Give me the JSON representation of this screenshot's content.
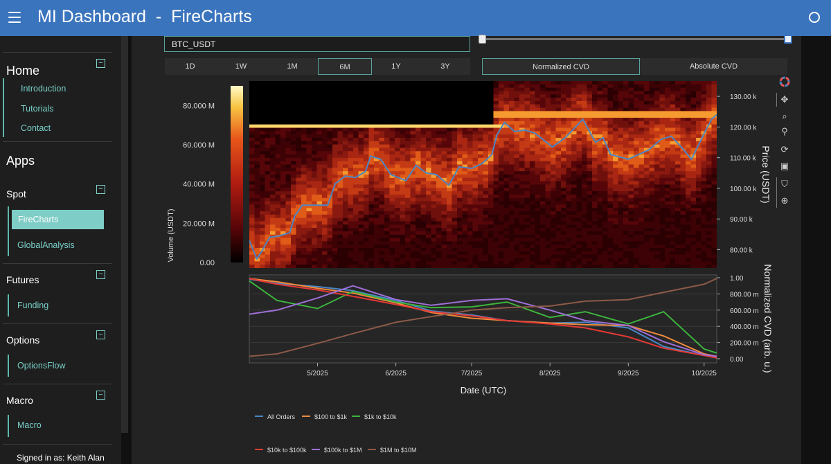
{
  "header": {
    "title": "MI Dashboard  -  FireCharts",
    "menu_icon": "hamburger-menu-icon",
    "status_icon": "status-circle-icon"
  },
  "sidebar": {
    "home": {
      "title": "Home",
      "toggle": "−",
      "links": [
        "Introduction",
        "Tutorials",
        "Contact"
      ]
    },
    "apps_title": "Apps",
    "spot": {
      "title": "Spot",
      "toggle": "−",
      "active": "FireCharts",
      "links": [
        "GlobalAnalysis"
      ]
    },
    "futures": {
      "title": "Futures",
      "toggle": "−",
      "links": [
        "Funding"
      ]
    },
    "options": {
      "title": "Options",
      "toggle": "−",
      "links": [
        "OptionsFlow"
      ]
    },
    "macro": {
      "title": "Macro",
      "toggle": "−",
      "links": [
        "Macro"
      ]
    },
    "signed_in": "Signed in as: Keith Alan"
  },
  "controls": {
    "pair_value": "BTC_USDT",
    "range_slider": {
      "start": 0,
      "end": 1
    },
    "timeframes": [
      "1D",
      "1W",
      "1M",
      "6M",
      "1Y",
      "3Y"
    ],
    "timeframe_selected": "6M",
    "cvd_modes": [
      "Normalized CVD",
      "Absolute CVD"
    ],
    "cvd_selected": "Normalized CVD"
  },
  "modebar": [
    "plotly-logo-icon",
    "pan-icon",
    "zoom-icon",
    "zoom-in-out-icon",
    "reset-icon",
    "save-image-icon",
    "hover-compare-icon",
    "spike-icon"
  ],
  "colors": {
    "accent": "#3a74bd",
    "teal": "#7ecdc6",
    "price": "#4a86c6",
    "series": [
      "#4a86c6",
      "#f08a3a",
      "#3cb53c",
      "#e53935",
      "#9f6fd8",
      "#8d5a48"
    ]
  },
  "chart_data": [
    {
      "type": "heatmap",
      "title": "",
      "xlabel": "Date (UTC)",
      "ylabel": "Price (USDT)",
      "colorbar_label": "Volume (USDT)",
      "colorbar_ticks": [
        "0.00",
        "20.000 M",
        "40.000 M",
        "60.000 M",
        "80.000 M"
      ],
      "colorbar_range": [
        0,
        90000000
      ],
      "x_ticks": [
        "5/2025",
        "6/2025",
        "7/2025",
        "8/2025",
        "9/2025",
        "10/2025"
      ],
      "x_range": [
        "2025-04-04",
        "2025-10-06"
      ],
      "y_ticks": [
        "80.00 k",
        "90.00 k",
        "100.00 k",
        "110.00 k",
        "120.00 k",
        "130.00 k"
      ],
      "ylim": [
        74000,
        135000
      ],
      "price_series": {
        "name": "Price",
        "x": [
          "2025-04-04",
          "2025-04-07",
          "2025-04-09",
          "2025-04-12",
          "2025-04-16",
          "2025-04-20",
          "2025-04-22",
          "2025-04-25",
          "2025-04-30",
          "2025-05-05",
          "2025-05-08",
          "2025-05-12",
          "2025-05-16",
          "2025-05-20",
          "2025-05-22",
          "2025-05-26",
          "2025-05-30",
          "2025-06-05",
          "2025-06-09",
          "2025-06-13",
          "2025-06-17",
          "2025-06-22",
          "2025-06-26",
          "2025-07-01",
          "2025-07-05",
          "2025-07-09",
          "2025-07-11",
          "2025-07-14",
          "2025-07-18",
          "2025-07-22",
          "2025-07-26",
          "2025-08-02",
          "2025-08-07",
          "2025-08-10",
          "2025-08-14",
          "2025-08-19",
          "2025-08-22",
          "2025-08-25",
          "2025-09-01",
          "2025-09-05",
          "2025-09-09",
          "2025-09-14",
          "2025-09-18",
          "2025-09-22",
          "2025-09-26",
          "2025-09-29",
          "2025-10-02",
          "2025-10-04",
          "2025-10-06"
        ],
        "y": [
          83000,
          77000,
          79500,
          84000,
          84500,
          85500,
          91000,
          94500,
          94500,
          94500,
          101500,
          104000,
          103500,
          105500,
          110500,
          109500,
          104500,
          102500,
          107500,
          105000,
          104500,
          101000,
          107000,
          106500,
          108000,
          111000,
          117500,
          121500,
          118500,
          119000,
          118000,
          113500,
          116500,
          119000,
          122500,
          115000,
          116500,
          111000,
          109500,
          111000,
          112500,
          116000,
          117000,
          113500,
          109500,
          114500,
          119500,
          122500,
          124000
        ]
      }
    },
    {
      "type": "line",
      "title": "",
      "xlabel": "Date (UTC)",
      "ylabel": "Normalized CVD (arb. u.)",
      "y_ticks": [
        "0.00",
        "200.00 m",
        "400.00 m",
        "600.00 m",
        "800.00 m",
        "1.00"
      ],
      "ylim": [
        0,
        1
      ],
      "x": [
        "2025-04-04",
        "2025-04-15",
        "2025-05-01",
        "2025-05-15",
        "2025-06-01",
        "2025-06-15",
        "2025-07-01",
        "2025-07-15",
        "2025-08-01",
        "2025-08-15",
        "2025-09-01",
        "2025-09-15",
        "2025-10-01",
        "2025-10-06"
      ],
      "series": [
        {
          "name": "All Orders",
          "values": [
            0.98,
            0.93,
            0.89,
            0.84,
            0.72,
            0.59,
            0.54,
            0.47,
            0.44,
            0.45,
            0.38,
            0.15,
            0.04,
            0.02
          ]
        },
        {
          "name": "$100 to $1k",
          "values": [
            0.99,
            0.95,
            0.87,
            0.81,
            0.69,
            0.57,
            0.5,
            0.47,
            0.44,
            0.42,
            0.41,
            0.28,
            0.06,
            0.03
          ]
        },
        {
          "name": "$1k to $10k",
          "values": [
            0.96,
            0.72,
            0.62,
            0.83,
            0.7,
            0.63,
            0.64,
            0.7,
            0.51,
            0.58,
            0.43,
            0.58,
            0.12,
            0.07
          ]
        },
        {
          "name": "$10k to $100k",
          "values": [
            0.99,
            0.92,
            0.85,
            0.77,
            0.67,
            0.58,
            0.53,
            0.47,
            0.43,
            0.38,
            0.27,
            0.13,
            0.04,
            0.01
          ]
        },
        {
          "name": "$100k to $1M",
          "values": [
            0.55,
            0.6,
            0.75,
            0.9,
            0.73,
            0.66,
            0.72,
            0.74,
            0.6,
            0.47,
            0.41,
            0.21,
            0.05,
            0.03
          ]
        },
        {
          "name": "$1M to $10M",
          "values": [
            0.03,
            0.06,
            0.19,
            0.31,
            0.45,
            0.52,
            0.6,
            0.63,
            0.65,
            0.71,
            0.73,
            0.82,
            0.92,
            0.99
          ]
        }
      ],
      "legend_position": "bottom"
    }
  ]
}
